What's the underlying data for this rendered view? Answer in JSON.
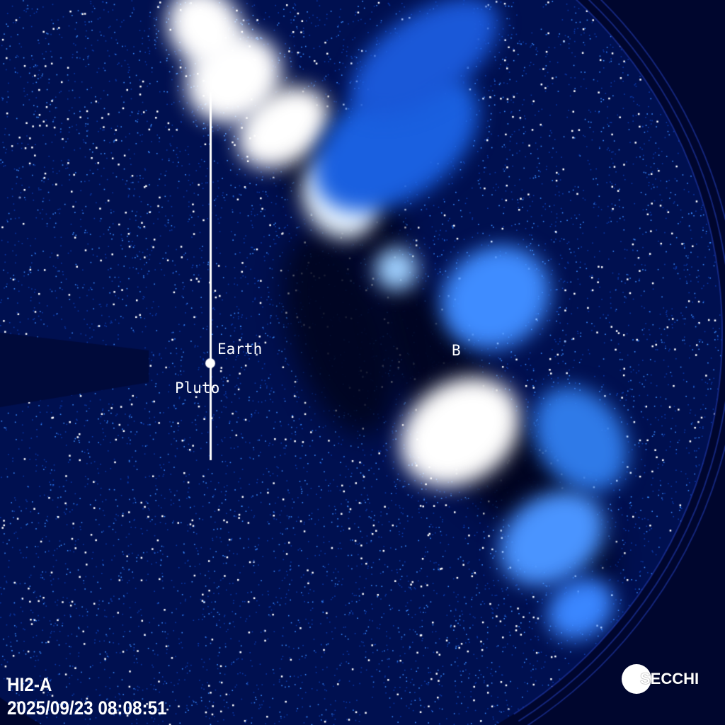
{
  "instrument": "HI2-A",
  "timestamp": "2025/09/23 08:08:51",
  "logo_text": "SECCHI",
  "markers": {
    "earth": "Earth",
    "pluto": "Pluto",
    "b": "B"
  },
  "colors": {
    "background": "#00052a",
    "stars": "#ffffff",
    "starlight_blue": "#1e6cff"
  }
}
